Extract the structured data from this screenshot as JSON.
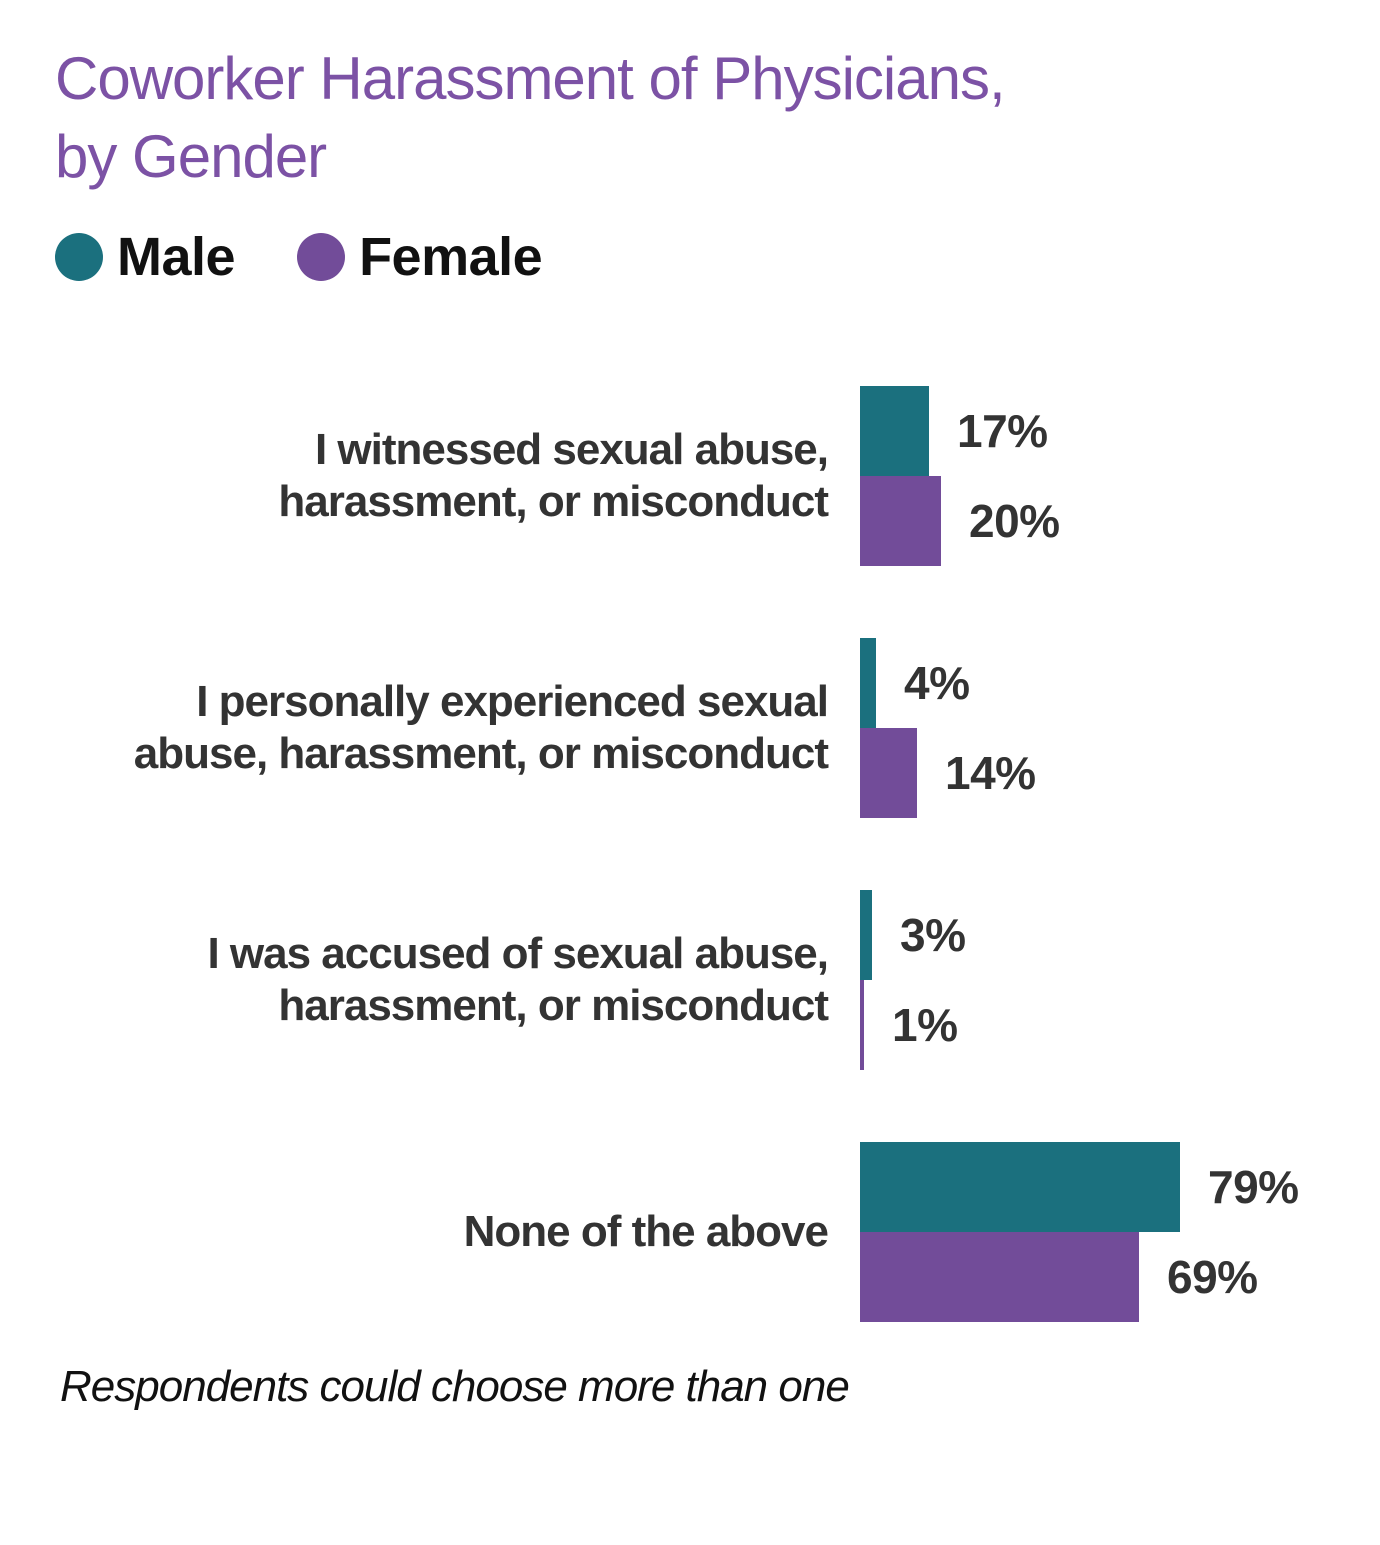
{
  "title": {
    "line1": "Coworker Harassment of Physicians,",
    "line2": "by Gender"
  },
  "legend": [
    {
      "label": "Male",
      "color": "#1b707e"
    },
    {
      "label": "Female",
      "color": "#724c99"
    }
  ],
  "footnote": "Respondents could choose more than one",
  "colors": {
    "male": "#1b707e",
    "female": "#724c99",
    "title": "#7c52a5",
    "text": "#333333"
  },
  "chart_data": {
    "type": "bar",
    "orientation": "horizontal",
    "title": "Coworker Harassment of Physicians, by Gender",
    "categories": [
      "I witnessed sexual abuse, harassment, or misconduct",
      "I personally experienced sexual abuse, harassment, or misconduct",
      "I was accused of sexual abuse, harassment, or misconduct",
      "None of the above"
    ],
    "category_lines": [
      [
        "I witnessed sexual abuse,",
        "harassment, or misconduct"
      ],
      [
        "I personally experienced sexual",
        "abuse, harassment, or misconduct"
      ],
      [
        "I was accused of sexual abuse,",
        "harassment, or misconduct"
      ],
      [
        "None of the above"
      ]
    ],
    "series": [
      {
        "name": "Male",
        "color": "#1b707e",
        "values": [
          17,
          4,
          3,
          79
        ]
      },
      {
        "name": "Female",
        "color": "#724c99",
        "values": [
          20,
          14,
          1,
          69
        ]
      }
    ],
    "value_suffix": "%",
    "data_labels": true,
    "xlim": [
      0,
      100
    ],
    "grid": false,
    "legend_position": "top-left",
    "note": "Respondents could choose more than one"
  }
}
